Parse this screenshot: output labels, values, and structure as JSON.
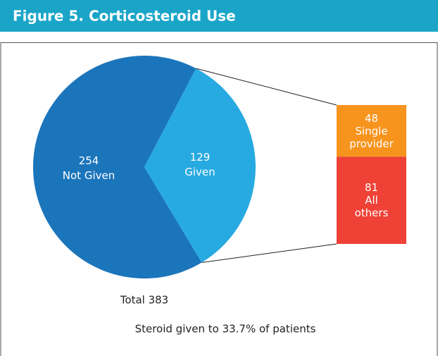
{
  "chart_data": {
    "type": "pie",
    "title": "Figure 5. Corticosteroid Use",
    "slices": [
      {
        "name": "Not Given",
        "value": 254,
        "color": "#1b75bb"
      },
      {
        "name": "Given",
        "value": 129,
        "color": "#27aae1"
      }
    ],
    "breakdown": {
      "segments": [
        {
          "name": "Single provider",
          "value": 48,
          "color": "#f7941d"
        },
        {
          "name": "All others",
          "value": 81,
          "color": "#ef4136"
        }
      ]
    },
    "total_label": "Total 383",
    "note": "Steroid given to 33.7% of patients"
  }
}
